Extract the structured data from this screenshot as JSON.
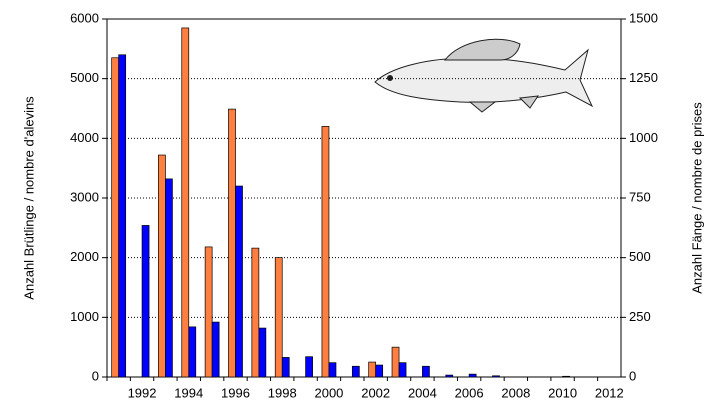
{
  "chart_data": {
    "type": "bar",
    "ylabel": "Anzahl Brütlinge / nombre d'alevins",
    "y2label": "Anzahl Fänge / nombre de prises",
    "categories": [
      null,
      "1992",
      null,
      "1994",
      null,
      "1996",
      null,
      "1998",
      null,
      "2000",
      null,
      "2002",
      null,
      "2004",
      null,
      "2006",
      null,
      "2008",
      null,
      "2010",
      null,
      "2012"
    ],
    "series": [
      {
        "color": "#ff7f40",
        "values": [
          5350,
          null,
          3720,
          5850,
          2180,
          4490,
          2160,
          2000,
          null,
          4200,
          null,
          250,
          500,
          null,
          null,
          null,
          null,
          null,
          null,
          null,
          null,
          null
        ]
      },
      {
        "color": "#0000ff",
        "axis": "y2",
        "values": [
          1350,
          635,
          830,
          210,
          230,
          800,
          205,
          82,
          85,
          60,
          45,
          50,
          60,
          45,
          8,
          12,
          5,
          null,
          null,
          3,
          null,
          null
        ]
      }
    ],
    "ylim": [
      0,
      6000
    ],
    "yticks": [
      0,
      1000,
      2000,
      3000,
      4000,
      5000,
      6000
    ],
    "y2lim": [
      0,
      1500
    ],
    "y2ticks": [
      0,
      250,
      500,
      750,
      1000,
      1250,
      1500
    ],
    "grid": true
  }
}
